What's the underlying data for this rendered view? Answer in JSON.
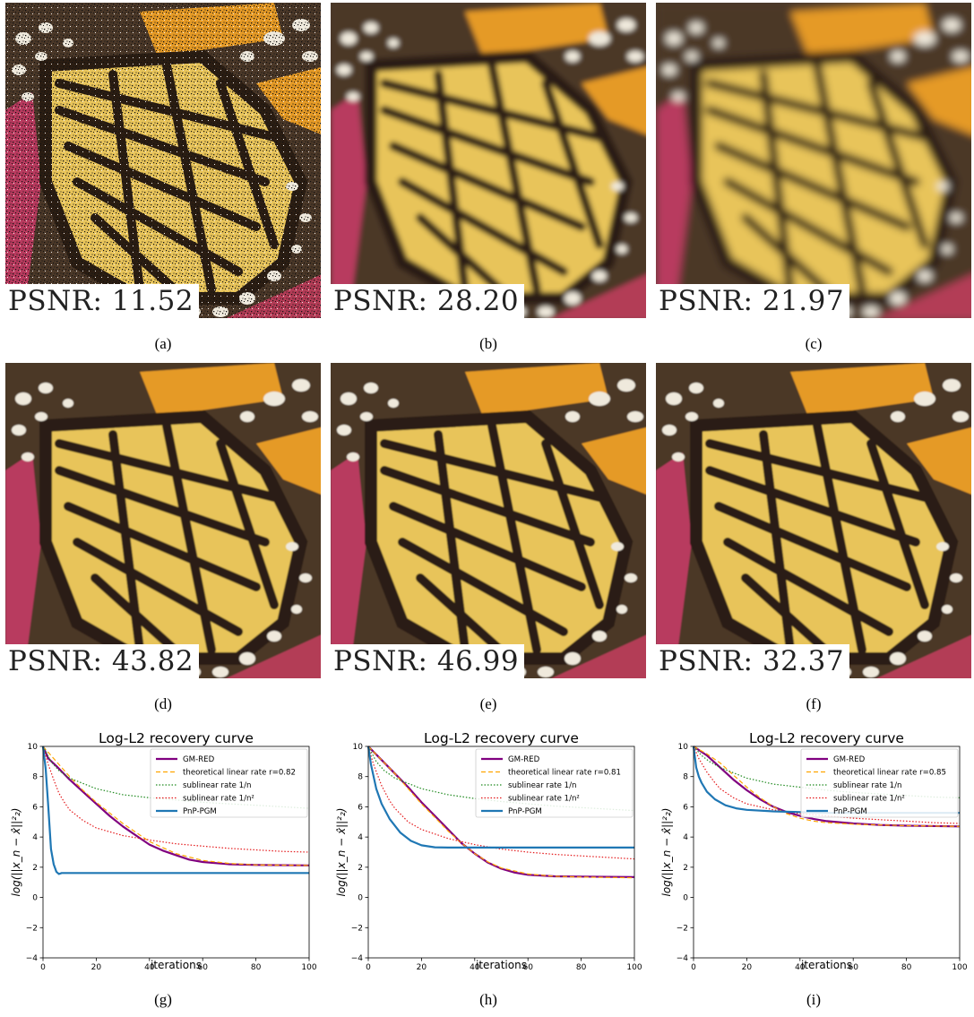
{
  "panels": [
    {
      "caption": "(a)",
      "psnr": "PSNR: 11.52",
      "variant": "noisy"
    },
    {
      "caption": "(b)",
      "psnr": "PSNR: 28.20",
      "variant": "blur"
    },
    {
      "caption": "(c)",
      "psnr": "PSNR: 21.97",
      "variant": "blur2"
    },
    {
      "caption": "(d)",
      "psnr": "PSNR: 43.82",
      "variant": "sharp"
    },
    {
      "caption": "(e)",
      "psnr": "PSNR: 46.99",
      "variant": "sharp"
    },
    {
      "caption": "(f)",
      "psnr": "PSNR: 32.37",
      "variant": "sharp"
    }
  ],
  "colors": {
    "gmred": "#800080",
    "linear": "#ffa500",
    "sub1": "#228b22",
    "sub2": "#e41a1c",
    "pnp": "#1f77b4"
  },
  "chart_data": [
    {
      "type": "line",
      "caption": "(g)",
      "title": "Log-L2 recovery curve",
      "xlabel": "iterations",
      "ylabel": "log(||x_n − x̂||²₂)",
      "xlim": [
        0,
        100
      ],
      "ylim": [
        -4,
        10
      ],
      "xticks": [
        0,
        20,
        40,
        60,
        80,
        100
      ],
      "yticks": [
        -4,
        -2,
        0,
        2,
        4,
        6,
        8,
        10
      ],
      "legend": [
        "GM-RED",
        "theoretical linear rate r=0.82",
        "sublinear rate 1/n",
        "sublinear rate 1/n²",
        "PnP-PGM"
      ],
      "series": [
        {
          "name": "GM-RED",
          "points": [
            [
              0,
              10
            ],
            [
              2,
              9.2
            ],
            [
              5,
              8.7
            ],
            [
              10,
              7.8
            ],
            [
              15,
              7
            ],
            [
              20,
              6.2
            ],
            [
              25,
              5.4
            ],
            [
              30,
              4.7
            ],
            [
              35,
              4.1
            ],
            [
              40,
              3.5
            ],
            [
              45,
              3.1
            ],
            [
              50,
              2.8
            ],
            [
              55,
              2.5
            ],
            [
              60,
              2.35
            ],
            [
              70,
              2.2
            ],
            [
              80,
              2.15
            ],
            [
              100,
              2.12
            ]
          ]
        },
        {
          "name": "theoretical linear rate r=0.82",
          "points": [
            [
              0,
              10
            ],
            [
              5,
              9
            ],
            [
              10,
              8
            ],
            [
              15,
              7.1
            ],
            [
              20,
              6.3
            ],
            [
              30,
              4.9
            ],
            [
              40,
              3.7
            ],
            [
              50,
              2.9
            ],
            [
              60,
              2.45
            ],
            [
              70,
              2.25
            ],
            [
              80,
              2.15
            ],
            [
              100,
              2.12
            ]
          ]
        },
        {
          "name": "sublinear rate 1/n",
          "points": [
            [
              0,
              10
            ],
            [
              3,
              9
            ],
            [
              6,
              8.4
            ],
            [
              10,
              7.9
            ],
            [
              20,
              7.2
            ],
            [
              30,
              6.8
            ],
            [
              40,
              6.6
            ],
            [
              50,
              6.45
            ],
            [
              60,
              6.3
            ],
            [
              70,
              6.2
            ],
            [
              80,
              6.1
            ],
            [
              90,
              6
            ],
            [
              100,
              5.9
            ]
          ]
        },
        {
          "name": "sublinear rate 1/n²",
          "points": [
            [
              0,
              10
            ],
            [
              2,
              8.8
            ],
            [
              4,
              7.8
            ],
            [
              6,
              6.9
            ],
            [
              8,
              6.3
            ],
            [
              10,
              5.8
            ],
            [
              15,
              5.1
            ],
            [
              20,
              4.6
            ],
            [
              30,
              4.1
            ],
            [
              40,
              3.8
            ],
            [
              50,
              3.55
            ],
            [
              60,
              3.4
            ],
            [
              70,
              3.25
            ],
            [
              80,
              3.15
            ],
            [
              90,
              3.05
            ],
            [
              100,
              3
            ]
          ]
        },
        {
          "name": "PnP-PGM",
          "points": [
            [
              0,
              10
            ],
            [
              1,
              8.5
            ],
            [
              2,
              6
            ],
            [
              3,
              3.2
            ],
            [
              4,
              2.2
            ],
            [
              5,
              1.7
            ],
            [
              6,
              1.55
            ],
            [
              7,
              1.62
            ],
            [
              100,
              1.62
            ]
          ]
        }
      ]
    },
    {
      "type": "line",
      "caption": "(h)",
      "title": "Log-L2 recovery curve",
      "xlabel": "iterations",
      "ylabel": "log(||x_n − x̂||²₂)",
      "xlim": [
        0,
        100
      ],
      "ylim": [
        -4,
        10
      ],
      "xticks": [
        0,
        20,
        40,
        60,
        80,
        100
      ],
      "yticks": [
        -4,
        -2,
        0,
        2,
        4,
        6,
        8,
        10
      ],
      "legend": [
        "GM-RED",
        "theoretical linear rate r=0.81",
        "sublinear rate 1/n",
        "sublinear rate 1/n²",
        "PnP-PGM"
      ],
      "series": [
        {
          "name": "GM-RED",
          "points": [
            [
              0,
              10
            ],
            [
              5,
              9.1
            ],
            [
              10,
              8.2
            ],
            [
              15,
              7.3
            ],
            [
              20,
              6.3
            ],
            [
              25,
              5.4
            ],
            [
              30,
              4.5
            ],
            [
              35,
              3.6
            ],
            [
              40,
              2.9
            ],
            [
              45,
              2.3
            ],
            [
              50,
              1.9
            ],
            [
              55,
              1.65
            ],
            [
              60,
              1.5
            ],
            [
              70,
              1.4
            ],
            [
              80,
              1.38
            ],
            [
              100,
              1.35
            ]
          ]
        },
        {
          "name": "theoretical linear rate r=0.81",
          "points": [
            [
              0,
              10
            ],
            [
              5,
              9.1
            ],
            [
              10,
              8.2
            ],
            [
              15,
              7.2
            ],
            [
              20,
              6.2
            ],
            [
              25,
              5.3
            ],
            [
              30,
              4.4
            ],
            [
              35,
              3.6
            ],
            [
              40,
              2.9
            ],
            [
              45,
              2.35
            ],
            [
              50,
              1.95
            ],
            [
              60,
              1.55
            ],
            [
              70,
              1.4
            ],
            [
              80,
              1.35
            ],
            [
              100,
              1.3
            ]
          ]
        },
        {
          "name": "sublinear rate 1/n",
          "points": [
            [
              0,
              10
            ],
            [
              3,
              9
            ],
            [
              6,
              8.4
            ],
            [
              10,
              7.9
            ],
            [
              20,
              7.2
            ],
            [
              30,
              6.8
            ],
            [
              40,
              6.55
            ],
            [
              50,
              6.35
            ],
            [
              60,
              6.2
            ],
            [
              70,
              6.05
            ],
            [
              80,
              5.95
            ],
            [
              90,
              5.85
            ],
            [
              100,
              5.75
            ]
          ]
        },
        {
          "name": "sublinear rate 1/n²",
          "points": [
            [
              0,
              10
            ],
            [
              2,
              8.8
            ],
            [
              5,
              7.4
            ],
            [
              8,
              6.4
            ],
            [
              10,
              5.9
            ],
            [
              15,
              5
            ],
            [
              20,
              4.5
            ],
            [
              30,
              3.9
            ],
            [
              40,
              3.5
            ],
            [
              50,
              3.2
            ],
            [
              60,
              3
            ],
            [
              70,
              2.85
            ],
            [
              80,
              2.75
            ],
            [
              90,
              2.65
            ],
            [
              100,
              2.55
            ]
          ]
        },
        {
          "name": "PnP-PGM",
          "points": [
            [
              0,
              10
            ],
            [
              1,
              8.8
            ],
            [
              3,
              7.2
            ],
            [
              5,
              6.2
            ],
            [
              8,
              5.2
            ],
            [
              12,
              4.3
            ],
            [
              16,
              3.75
            ],
            [
              20,
              3.45
            ],
            [
              25,
              3.32
            ],
            [
              30,
              3.3
            ],
            [
              100,
              3.3
            ]
          ]
        }
      ]
    },
    {
      "type": "line",
      "caption": "(i)",
      "title": "Log-L2 recovery curve",
      "xlabel": "iterations",
      "ylabel": "log(||x_n − x̂||²₂)",
      "xlim": [
        0,
        100
      ],
      "ylim": [
        -4,
        10
      ],
      "xticks": [
        0,
        20,
        40,
        60,
        80,
        100
      ],
      "yticks": [
        -4,
        -2,
        0,
        2,
        4,
        6,
        8,
        10
      ],
      "legend": [
        "GM-RED",
        "theoretical linear rate r=0.85",
        "sublinear rate 1/n",
        "sublinear rate 1/n²",
        "PnP-PGM"
      ],
      "series": [
        {
          "name": "GM-RED",
          "points": [
            [
              0,
              10
            ],
            [
              5,
              9.4
            ],
            [
              10,
              8.6
            ],
            [
              15,
              7.8
            ],
            [
              20,
              7.1
            ],
            [
              25,
              6.5
            ],
            [
              30,
              6
            ],
            [
              35,
              5.65
            ],
            [
              40,
              5.4
            ],
            [
              45,
              5.2
            ],
            [
              50,
              5.05
            ],
            [
              60,
              4.9
            ],
            [
              70,
              4.8
            ],
            [
              80,
              4.75
            ],
            [
              100,
              4.7
            ]
          ]
        },
        {
          "name": "theoretical linear rate r=0.85",
          "points": [
            [
              0,
              10
            ],
            [
              5,
              9.5
            ],
            [
              10,
              8.9
            ],
            [
              15,
              8.1
            ],
            [
              20,
              7.3
            ],
            [
              25,
              6.6
            ],
            [
              30,
              6
            ],
            [
              35,
              5.55
            ],
            [
              40,
              5.25
            ],
            [
              45,
              5.05
            ],
            [
              50,
              4.95
            ],
            [
              60,
              4.85
            ],
            [
              70,
              4.8
            ],
            [
              80,
              4.75
            ],
            [
              100,
              4.7
            ]
          ]
        },
        {
          "name": "sublinear rate 1/n",
          "points": [
            [
              0,
              10
            ],
            [
              3,
              9.4
            ],
            [
              6,
              9
            ],
            [
              10,
              8.6
            ],
            [
              20,
              7.9
            ],
            [
              30,
              7.5
            ],
            [
              40,
              7.3
            ],
            [
              50,
              7.1
            ],
            [
              60,
              6.95
            ],
            [
              70,
              6.85
            ],
            [
              80,
              6.75
            ],
            [
              90,
              6.65
            ],
            [
              100,
              6.6
            ]
          ]
        },
        {
          "name": "sublinear rate 1/n²",
          "points": [
            [
              0,
              10
            ],
            [
              2,
              9.2
            ],
            [
              5,
              8.3
            ],
            [
              8,
              7.6
            ],
            [
              10,
              7.2
            ],
            [
              15,
              6.6
            ],
            [
              20,
              6.2
            ],
            [
              30,
              5.8
            ],
            [
              40,
              5.55
            ],
            [
              50,
              5.4
            ],
            [
              60,
              5.25
            ],
            [
              70,
              5.15
            ],
            [
              80,
              5.05
            ],
            [
              90,
              4.95
            ],
            [
              100,
              4.9
            ]
          ]
        },
        {
          "name": "PnP-PGM",
          "points": [
            [
              0,
              10
            ],
            [
              1,
              8.6
            ],
            [
              2,
              8
            ],
            [
              3,
              7.6
            ],
            [
              5,
              7
            ],
            [
              8,
              6.5
            ],
            [
              12,
              6.1
            ],
            [
              16,
              5.9
            ],
            [
              20,
              5.8
            ],
            [
              30,
              5.7
            ],
            [
              40,
              5.65
            ],
            [
              50,
              5.6
            ],
            [
              100,
              5.6
            ]
          ]
        }
      ]
    }
  ]
}
